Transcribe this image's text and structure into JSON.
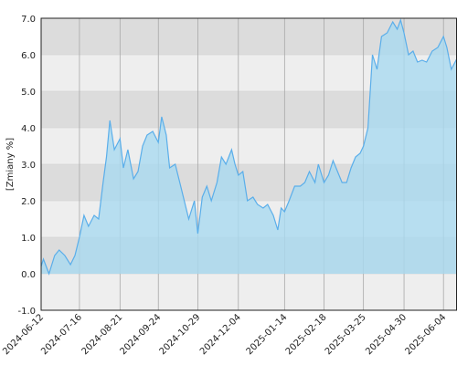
{
  "chart_data": {
    "type": "area",
    "ylabel": "[Zmiany %]",
    "xlim": [
      "2024-06-12",
      "2025-06-16"
    ],
    "xticks": [
      "2024-06-12",
      "2024-07-16",
      "2024-08-21",
      "2024-09-24",
      "2024-10-29",
      "2024-12-04",
      "2025-01-14",
      "2025-02-18",
      "2025-03-25",
      "2025-04-30",
      "2025-06-04"
    ],
    "ylim": [
      -1,
      7
    ],
    "yticks": [
      {
        "value": -1,
        "label": "-1.0"
      },
      {
        "value": 0,
        "label": "0.0"
      },
      {
        "value": 1,
        "label": "1.0"
      },
      {
        "value": 2,
        "label": "2.0"
      },
      {
        "value": 3,
        "label": "3.0"
      },
      {
        "value": 4,
        "label": "4.0"
      },
      {
        "value": 5,
        "label": "5.0"
      },
      {
        "value": 6,
        "label": "6.0"
      },
      {
        "value": 7,
        "label": "7.0"
      }
    ],
    "grid": true,
    "color": "#5aaeea",
    "fill": "#a9d9f0",
    "x": [
      "2024-06-12",
      "2024-06-14",
      "2024-06-19",
      "2024-06-24",
      "2024-06-28",
      "2024-07-03",
      "2024-07-08",
      "2024-07-12",
      "2024-07-16",
      "2024-07-20",
      "2024-07-24",
      "2024-07-29",
      "2024-08-02",
      "2024-08-06",
      "2024-08-09",
      "2024-08-12",
      "2024-08-16",
      "2024-08-21",
      "2024-08-24",
      "2024-08-28",
      "2024-09-02",
      "2024-09-06",
      "2024-09-10",
      "2024-09-14",
      "2024-09-19",
      "2024-09-24",
      "2024-09-27",
      "2024-10-01",
      "2024-10-04",
      "2024-10-09",
      "2024-10-13",
      "2024-10-17",
      "2024-10-21",
      "2024-10-26",
      "2024-10-29",
      "2024-11-02",
      "2024-11-06",
      "2024-11-10",
      "2024-11-15",
      "2024-11-19",
      "2024-11-23",
      "2024-11-28",
      "2024-12-01",
      "2024-12-04",
      "2024-12-08",
      "2024-12-12",
      "2024-12-17",
      "2024-12-21",
      "2024-12-26",
      "2024-12-30",
      "2025-01-04",
      "2025-01-08",
      "2025-01-11",
      "2025-01-14",
      "2025-01-18",
      "2025-01-23",
      "2025-01-28",
      "2025-02-01",
      "2025-02-05",
      "2025-02-10",
      "2025-02-13",
      "2025-02-18",
      "2025-02-22",
      "2025-02-26",
      "2025-03-02",
      "2025-03-06",
      "2025-03-10",
      "2025-03-14",
      "2025-03-18",
      "2025-03-22",
      "2025-03-25",
      "2025-03-29",
      "2025-04-02",
      "2025-04-06",
      "2025-04-10",
      "2025-04-15",
      "2025-04-20",
      "2025-04-24",
      "2025-04-27",
      "2025-04-30",
      "2025-05-04",
      "2025-05-08",
      "2025-05-12",
      "2025-05-16",
      "2025-05-20",
      "2025-05-25",
      "2025-05-30",
      "2025-06-04",
      "2025-06-07",
      "2025-06-11",
      "2025-06-16"
    ],
    "values": [
      0.2,
      0.4,
      0.0,
      0.5,
      0.65,
      0.5,
      0.25,
      0.5,
      1.0,
      1.6,
      1.3,
      1.6,
      1.5,
      2.5,
      3.2,
      4.2,
      3.4,
      3.7,
      2.9,
      3.4,
      2.6,
      2.8,
      3.5,
      3.8,
      3.9,
      3.6,
      4.3,
      3.8,
      2.9,
      3.0,
      2.5,
      2.0,
      1.5,
      2.0,
      1.1,
      2.1,
      2.4,
      2.0,
      2.5,
      3.2,
      3.0,
      3.4,
      3.0,
      2.7,
      2.8,
      2.0,
      2.1,
      1.9,
      1.8,
      1.9,
      1.6,
      1.2,
      1.8,
      1.7,
      2.0,
      2.4,
      2.4,
      2.5,
      2.8,
      2.5,
      3.0,
      2.5,
      2.7,
      3.1,
      2.8,
      2.5,
      2.5,
      2.9,
      3.2,
      3.3,
      3.5,
      4.0,
      6.0,
      5.6,
      6.5,
      6.6,
      6.9,
      6.7,
      6.95,
      6.6,
      6.0,
      6.1,
      5.8,
      5.85,
      5.8,
      6.1,
      6.2,
      6.5,
      6.2,
      5.6,
      5.9
    ]
  }
}
